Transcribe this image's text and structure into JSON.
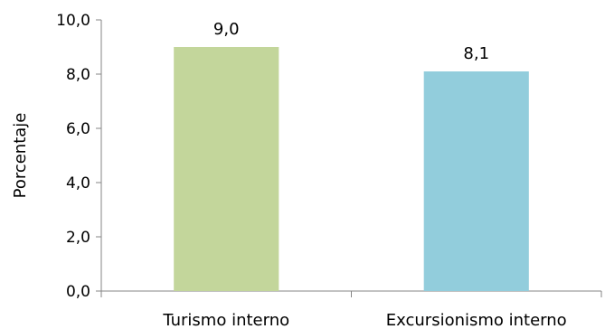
{
  "chart_data": {
    "type": "bar",
    "title": "",
    "xlabel": "",
    "ylabel": "Porcentaje",
    "ylim": [
      0,
      10
    ],
    "y_ticks": [
      "0,0",
      "2,0",
      "4,0",
      "6,0",
      "8,0",
      "10,0"
    ],
    "categories": [
      "Turismo interno",
      "Excursionismo interno"
    ],
    "values": [
      9.0,
      8.1
    ],
    "data_labels": [
      "9,0",
      "8,1"
    ],
    "colors": [
      "#c3d69b",
      "#92cddc"
    ],
    "grid": false,
    "legend": "none"
  }
}
